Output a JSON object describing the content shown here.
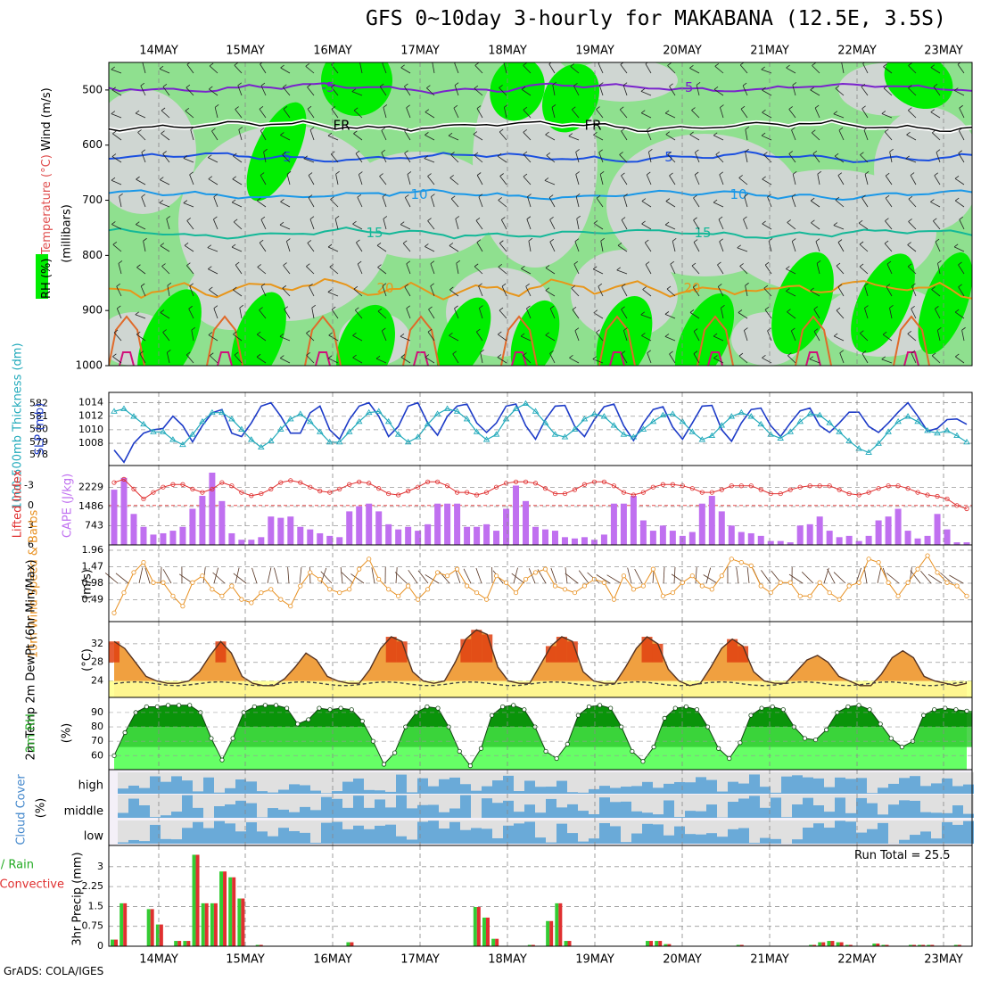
{
  "title": "GFS 0~10day 3-hourly for MAKABANA (12.5E, 3.5S)",
  "footer": "GrADS: COLA/IGES",
  "run_total": "Run Total = 25.5",
  "colors": {
    "rh_green_light": "#8fe08f",
    "rh_green": "#33cc33",
    "rh_green_bright": "#00ee00",
    "rh_grey": "#cfd6d2",
    "iso_m5": "#7a22cc",
    "iso_fr": "#000000",
    "iso_5": "#1a4fe0",
    "iso_10": "#1a98e8",
    "iso_15": "#14b898",
    "iso_20": "#e8961a",
    "iso_25": "#e06a2a",
    "iso_30": "#d0107a",
    "slp": "#1e3cc8",
    "thickness": "#22aabb",
    "cape_bar": "#c070f0",
    "lifted_index": "#e03030",
    "wind10m": "#e89020",
    "temp_max": "#e04010",
    "temp_mid": "#f0a040",
    "temp_low": "#ffff99",
    "rh2m_dark": "#008800",
    "rh2m_mid": "#33cc33",
    "rh2m_light": "#66ff66",
    "cloud_blue": "#6aaad8",
    "cloud_grey": "#e0e0e0",
    "cloud_white": "#f4f0f8",
    "precip_total": "#33cc33",
    "precip_conv": "#e03030"
  },
  "chart_data": [
    {
      "id": "upper_air",
      "type": "heatmap",
      "xlabels": [
        "14MAY",
        "15MAY",
        "16MAY",
        "17MAY",
        "18MAY",
        "19MAY",
        "20MAY",
        "21MAY",
        "22MAY",
        "23MAY"
      ],
      "ylabel_parts": [
        "RH (%)",
        "Temperature (°C)",
        "Wind (m/s)"
      ],
      "ylabel_unit": "(millibars)",
      "levels": [
        500,
        600,
        700,
        800,
        900,
        1000
      ],
      "ylim": [
        450,
        1000
      ],
      "isotherm_labels": [
        "-5",
        "FR",
        "5",
        "10",
        "15",
        "20"
      ],
      "isotherms": [
        {
          "label": "-5",
          "level": 496
        },
        {
          "label": "FR",
          "level": 565
        },
        {
          "label": "5",
          "level": 622
        },
        {
          "label": "10",
          "level": 690
        },
        {
          "label": "15",
          "level": 760
        },
        {
          "label": "20",
          "level": 860
        }
      ]
    },
    {
      "id": "pressure",
      "type": "line",
      "ylabel_left": "1000-500mb Thickness (dm)",
      "ylabel_right": "SLP (mb)",
      "left_ticks": [
        578,
        579,
        580,
        581,
        582
      ],
      "right_ticks": [
        1008,
        1010,
        1012,
        1014
      ],
      "slp": [
        1007.0,
        1005.2,
        1008.0,
        1009.5,
        1010.0,
        1010.2,
        1012.0,
        1010.6,
        1008.2,
        1010.6,
        1012.5,
        1013.0,
        1009.5,
        1009.0,
        1011.0,
        1013.5,
        1014.0,
        1012.0,
        1009.5,
        1009.5,
        1012.5,
        1013.5,
        1010.0,
        1008.6,
        1011.5,
        1013.5,
        1014.0,
        1012.0,
        1009.0,
        1010.5,
        1013.5,
        1014.0,
        1011.0,
        1009.2,
        1012.0,
        1013.5,
        1013.8,
        1011.0,
        1009.6,
        1011.0,
        1013.5,
        1013.8,
        1010.6,
        1008.6,
        1011.5,
        1013.5,
        1013.6,
        1010.5,
        1009.0,
        1011.5,
        1013.4,
        1013.8,
        1010.6,
        1008.4,
        1011.0,
        1013.0,
        1013.4,
        1010.4,
        1008.6,
        1011.0,
        1013.5,
        1013.6,
        1010.0,
        1008.3,
        1011.0,
        1013.0,
        1013.2,
        1010.6,
        1009.0,
        1011.0,
        1012.8,
        1013.2,
        1010.6,
        1009.6,
        1011.0,
        1012.6,
        1012.6,
        1010.5,
        1009.6,
        1011.0,
        1012.6,
        1014.0,
        1012.0,
        1009.8,
        1010.2,
        1011.5,
        1011.6,
        1010.8
      ],
      "thickness": [
        581.4,
        581.6,
        581.0,
        580.4,
        579.8,
        579.8,
        579.2,
        578.8,
        579.6,
        580.6,
        581.3,
        581.3,
        580.8,
        580.0,
        579.2,
        578.6,
        579.1,
        580.0,
        580.8,
        581.2,
        580.6,
        579.8,
        579.0,
        579.0,
        579.8,
        580.6,
        581.3,
        581.4,
        580.6,
        579.6,
        579.0,
        579.4,
        580.4,
        581.2,
        581.6,
        581.4,
        580.8,
        579.8,
        579.2,
        579.6,
        580.8,
        581.6,
        582.0,
        581.4,
        580.5,
        579.6,
        579.4,
        580.0,
        580.8,
        581.2,
        581.0,
        580.3,
        579.6,
        579.4,
        580.0,
        580.6,
        581.1,
        581.2,
        580.6,
        579.8,
        579.2,
        579.5,
        580.3,
        581.0,
        581.3,
        581.0,
        580.4,
        579.6,
        579.3,
        579.8,
        580.6,
        581.2,
        581.1,
        580.5,
        579.8,
        579.1,
        578.5,
        578.2,
        578.9,
        579.8,
        580.6,
        581.0,
        580.6,
        579.9,
        579.7,
        579.9,
        579.5,
        579.0
      ]
    },
    {
      "id": "cape",
      "type": "bar",
      "ylabel_left": "Lifted Index",
      "ylabel_right": "CAPE (J/kg)",
      "left_ticks": [
        "-3",
        "0",
        "3",
        "6"
      ],
      "right_ticks": [
        743,
        1486,
        2229
      ],
      "cape": [
        2140,
        2600,
        1200,
        700,
        400,
        450,
        550,
        700,
        1400,
        1900,
        2800,
        1700,
        450,
        200,
        200,
        300,
        1100,
        1050,
        1100,
        700,
        600,
        450,
        350,
        300,
        1300,
        1500,
        1600,
        1300,
        800,
        600,
        700,
        550,
        800,
        1600,
        1600,
        1600,
        700,
        700,
        800,
        550,
        1400,
        2300,
        1700,
        700,
        600,
        550,
        300,
        250,
        300,
        200,
        400,
        1600,
        1600,
        1900,
        950,
        550,
        750,
        550,
        350,
        500,
        1600,
        1900,
        1300,
        750,
        500,
        450,
        350,
        150,
        150,
        100,
        750,
        800,
        1100,
        550,
        300,
        350,
        150,
        350,
        950,
        1100,
        1400,
        550,
        250,
        350,
        1200,
        600,
        100,
        100
      ],
      "lifted_index": [
        -3.5,
        -4.0,
        -2.5,
        -1.0,
        -2.0,
        -2.8,
        -3.2,
        -3.2,
        -2.5,
        -2.0,
        -2.5,
        -3.5,
        -3.0,
        -2.0,
        -1.5,
        -1.8,
        -2.5,
        -3.5,
        -3.8,
        -3.5,
        -2.8,
        -2.2,
        -2.0,
        -2.5,
        -3.2,
        -3.6,
        -3.4,
        -2.6,
        -1.8,
        -1.6,
        -2.2,
        -2.8,
        -3.6,
        -3.6,
        -3.0,
        -2.0,
        -2.0,
        -1.6,
        -2.0,
        -2.8,
        -3.4,
        -3.6,
        -3.6,
        -3.4,
        -2.6,
        -1.8,
        -1.8,
        -2.4,
        -3.2,
        -3.6,
        -3.6,
        -3.0,
        -2.0,
        -1.6,
        -2.0,
        -2.8,
        -3.2,
        -3.2,
        -3.0,
        -2.6,
        -2.0,
        -2.0,
        -2.4,
        -3.0,
        -3.0,
        -3.0,
        -2.4,
        -1.8,
        -1.8,
        -2.4,
        -2.8,
        -3.0,
        -3.0,
        -3.0,
        -2.4,
        -1.8,
        -1.6,
        -2.0,
        -2.6,
        -3.0,
        -3.0,
        -2.6,
        -2.0,
        -1.6,
        -1.4,
        -1.0,
        0.0,
        0.5
      ]
    },
    {
      "id": "wind10m",
      "type": "line",
      "ylabel_left": "10m Wind Speed & Barbs",
      "ylabel_unit": "(m/s)",
      "ticks": [
        0.49,
        0.98,
        1.47,
        1.96
      ],
      "speed": [
        0.1,
        0.7,
        1.3,
        1.6,
        1.0,
        1.0,
        0.6,
        0.3,
        1.0,
        1.2,
        0.8,
        0.6,
        0.9,
        0.5,
        0.4,
        0.7,
        0.8,
        0.5,
        0.3,
        0.9,
        1.3,
        1.1,
        0.8,
        0.7,
        0.8,
        1.4,
        1.7,
        1.1,
        0.8,
        0.6,
        0.9,
        0.5,
        0.8,
        1.3,
        1.2,
        1.4,
        0.9,
        0.7,
        0.5,
        1.2,
        1.0,
        0.7,
        1.1,
        1.3,
        1.4,
        0.9,
        0.8,
        0.7,
        0.9,
        1.1,
        1.0,
        0.5,
        1.2,
        0.8,
        0.9,
        1.4,
        0.6,
        0.7,
        1.0,
        1.2,
        0.9,
        0.8,
        1.2,
        1.7,
        1.6,
        1.5,
        0.9,
        0.7,
        1.0,
        1.0,
        0.6,
        0.6,
        1.0,
        0.7,
        0.5,
        0.9,
        1.0,
        1.7,
        1.6,
        1.0,
        0.6,
        1.0,
        1.4,
        1.8,
        1.3,
        1.0,
        0.9,
        0.6
      ]
    },
    {
      "id": "temperature",
      "type": "area",
      "ylabel_left": "2m Temp 2m DewPt (6hr Min/Max)",
      "ylabel_unit": "(°C)",
      "ticks": [
        24,
        28,
        32
      ],
      "temp": [
        32.5,
        31.0,
        28.0,
        25.0,
        24.0,
        23.5,
        23.5,
        24.0,
        26.0,
        29.5,
        32.5,
        30.0,
        25.0,
        23.5,
        23.0,
        23.0,
        24.5,
        27.0,
        30.0,
        28.5,
        25.0,
        24.0,
        23.5,
        23.5,
        26.5,
        31.0,
        33.5,
        32.5,
        26.0,
        24.0,
        23.5,
        24.0,
        28.0,
        33.0,
        35.0,
        34.0,
        27.0,
        24.0,
        23.5,
        23.5,
        27.5,
        31.5,
        33.5,
        32.5,
        26.0,
        24.0,
        23.5,
        23.5,
        27.0,
        31.0,
        33.5,
        32.0,
        26.5,
        24.0,
        23.0,
        23.5,
        27.0,
        31.0,
        33.0,
        31.5,
        26.0,
        24.0,
        23.5,
        23.5,
        26.0,
        28.5,
        29.5,
        28.0,
        25.0,
        24.0,
        23.0,
        23.0,
        25.5,
        29.0,
        30.5,
        29.0,
        25.0,
        24.0,
        23.5,
        23.0,
        23.5
      ]
    },
    {
      "id": "rh2m",
      "type": "area",
      "ylabel_left": "2m RH",
      "ylabel_unit": "(%)",
      "ticks": [
        60,
        70,
        80,
        90
      ],
      "values": [
        60,
        76,
        90,
        94,
        94,
        95,
        95,
        95,
        90,
        72,
        57,
        72,
        90,
        94,
        95,
        95,
        93,
        82,
        85,
        93,
        92,
        93,
        92,
        84,
        70,
        54,
        62,
        80,
        90,
        94,
        93,
        80,
        63,
        53,
        65,
        88,
        94,
        95,
        92,
        80,
        63,
        58,
        68,
        88,
        94,
        95,
        93,
        80,
        63,
        56,
        66,
        86,
        93,
        94,
        92,
        80,
        65,
        58,
        69,
        88,
        93,
        94,
        92,
        80,
        72,
        71,
        78,
        90,
        94,
        95,
        92,
        82,
        72,
        66,
        70,
        88,
        92,
        93,
        92,
        91
      ]
    },
    {
      "id": "cloud_cover",
      "type": "heatmap",
      "ylabel_left": "Cloud Cover",
      "ylabel_unit": "(%)",
      "rows": [
        "high",
        "middle",
        "low"
      ]
    },
    {
      "id": "precip",
      "type": "bar",
      "ylabel_left": "Total / Rain",
      "ylabel_left2": "Convective",
      "ylabel_unit": "3hr Precip (mm)",
      "ticks": [
        0,
        0.75,
        1.5,
        2.25,
        3
      ],
      "total": [
        0.25,
        1.62,
        0,
        0,
        1.4,
        0.82,
        0,
        0.2,
        0.2,
        3.45,
        1.62,
        1.62,
        2.82,
        2.6,
        1.8,
        0,
        0.05,
        0,
        0,
        0,
        0,
        0,
        0,
        0,
        0,
        0,
        0.15,
        0,
        0,
        0,
        0,
        0,
        0,
        0,
        0,
        0,
        0,
        0,
        0,
        0,
        1.48,
        1.08,
        0.28,
        0,
        0,
        0,
        0.05,
        0,
        0.95,
        1.62,
        0.2,
        0,
        0,
        0,
        0,
        0,
        0,
        0,
        0,
        0.2,
        0.2,
        0.08,
        0,
        0,
        0,
        0,
        0,
        0,
        0,
        0.05,
        0,
        0,
        0,
        0,
        0,
        0,
        0,
        0.05,
        0.15,
        0.2,
        0.15,
        0.05,
        0,
        0,
        0.1,
        0.05,
        0,
        0,
        0.05,
        0.05,
        0.05,
        0,
        0,
        0.05,
        0
      ],
      "convective": [
        0.25,
        1.62,
        0,
        0,
        1.4,
        0.82,
        0,
        0.2,
        0.2,
        3.45,
        1.62,
        1.62,
        2.82,
        2.6,
        1.8,
        0,
        0.05,
        0,
        0,
        0,
        0,
        0,
        0,
        0,
        0,
        0,
        0.15,
        0,
        0,
        0,
        0,
        0,
        0,
        0,
        0,
        0,
        0,
        0,
        0,
        0,
        1.48,
        1.08,
        0.28,
        0,
        0,
        0,
        0.05,
        0,
        0.95,
        1.62,
        0.2,
        0,
        0,
        0,
        0,
        0,
        0,
        0,
        0,
        0.2,
        0.2,
        0.08,
        0,
        0,
        0,
        0,
        0,
        0,
        0,
        0.05,
        0,
        0,
        0,
        0,
        0,
        0,
        0,
        0.05,
        0.15,
        0.2,
        0.15,
        0.05,
        0,
        0,
        0.1,
        0.05,
        0,
        0,
        0.05,
        0.05,
        0.05,
        0,
        0,
        0.05,
        0
      ]
    }
  ]
}
